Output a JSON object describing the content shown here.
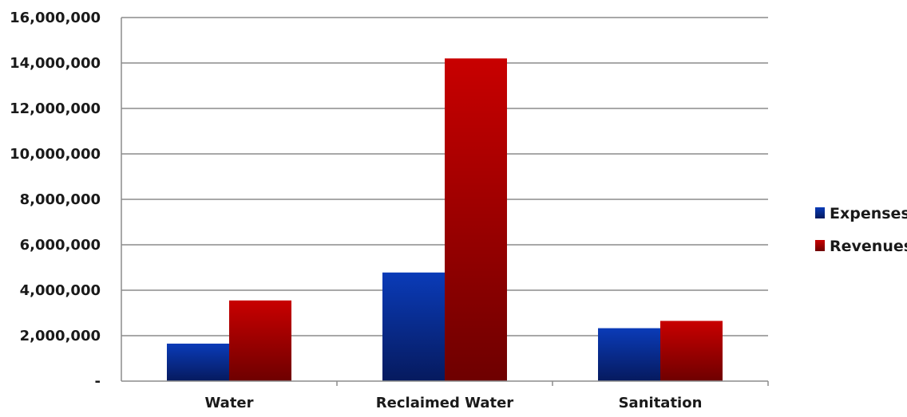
{
  "chart_data": {
    "type": "bar",
    "title": "",
    "xlabel": "",
    "ylabel": "",
    "categories": [
      "Water",
      "Reclaimed Water",
      "Sanitation"
    ],
    "series": [
      {
        "name": "Expenses",
        "values": [
          1650000,
          4780000,
          2330000
        ],
        "color": "#0b2f99"
      },
      {
        "name": "Revenues",
        "values": [
          3550000,
          14200000,
          2650000
        ],
        "color": "#b30000"
      }
    ],
    "ylim": [
      0,
      16000000
    ],
    "y_ticks": [
      0,
      2000000,
      4000000,
      6000000,
      8000000,
      10000000,
      12000000,
      14000000,
      16000000
    ],
    "y_tick_labels": [
      "-",
      "2,000,000",
      "4,000,000",
      "6,000,000",
      "8,000,000",
      "10,000,000",
      "12,000,000",
      "14,000,000",
      "16,000,000"
    ],
    "grid": true,
    "legend_position": "right"
  }
}
